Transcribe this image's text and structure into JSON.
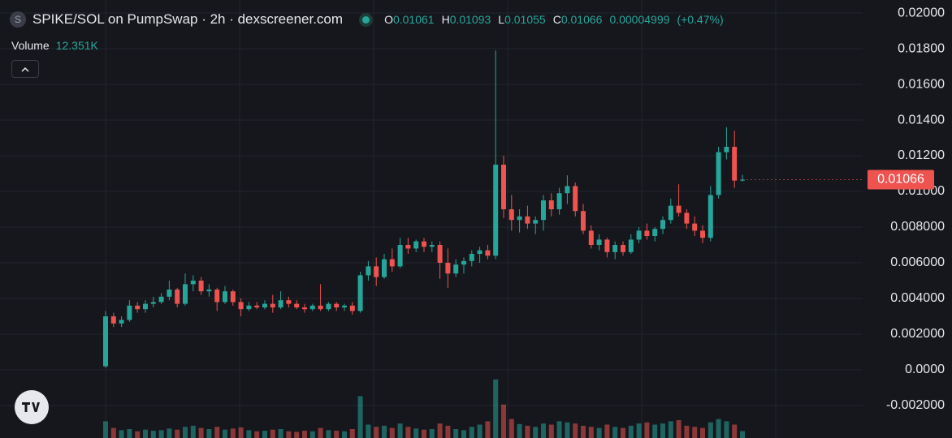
{
  "header": {
    "icon_letter": "S",
    "title": "SPIKE/SOL on PumpSwap · 2h · dexscreener.com",
    "ohlc_labels": [
      "O",
      "H",
      "L",
      "C"
    ],
    "ohlc_values": [
      0.01061,
      0.01093,
      0.01055,
      0.01066
    ],
    "change": 4.999e-05,
    "change_pct": {
      "value": 0.47,
      "label": "(+0.47%)"
    },
    "volume_label": "Volume",
    "volume_legend": {
      "value": 12351,
      "label": "12.351K"
    }
  },
  "chart_data": {
    "type": "candlestick",
    "up_color": "#26a69a",
    "down_color": "#ef5350",
    "grid": true,
    "ylim": [
      -0.00382,
      0.02073
    ],
    "yticks": [
      {
        "value": -0.002,
        "label": "-0.002000"
      },
      {
        "value": 0,
        "label": "0.0000"
      },
      {
        "value": 0.002,
        "label": "0.002000"
      },
      {
        "value": 0.004,
        "label": "0.004000"
      },
      {
        "value": 0.006,
        "label": "0.006000"
      },
      {
        "value": 0.008,
        "label": "0.008000"
      },
      {
        "value": 0.01,
        "label": "0.01000"
      },
      {
        "value": 0.012,
        "label": "0.01200"
      },
      {
        "value": 0.014,
        "label": "0.01400"
      },
      {
        "value": 0.016,
        "label": "0.01600"
      },
      {
        "value": 0.018,
        "label": "0.01800"
      },
      {
        "value": 0.02,
        "label": "0.02000"
      }
    ],
    "volume_ylim": [
      0,
      160000
    ],
    "open": [
      0.0002,
      0.003,
      0.0026,
      0.0028,
      0.0036,
      0.0034,
      0.0037,
      0.0038,
      0.0041,
      0.0045,
      0.0037,
      0.0048,
      0.005,
      0.0044,
      0.0045,
      0.0038,
      0.0044,
      0.0038,
      0.0034,
      0.0036,
      0.0035,
      0.0037,
      0.0035,
      0.0039,
      0.0037,
      0.0035,
      0.0034,
      0.0036,
      0.0034,
      0.0037,
      0.0035,
      0.0036,
      0.0033,
      0.0053,
      0.0058,
      0.0052,
      0.0062,
      0.0058,
      0.007,
      0.0068,
      0.0072,
      0.0069,
      0.007,
      0.006,
      0.0054,
      0.0059,
      0.0061,
      0.0065,
      0.0067,
      0.0064,
      0.0115,
      0.009,
      0.0084,
      0.0086,
      0.0082,
      0.0084,
      0.0095,
      0.009,
      0.0099,
      0.0103,
      0.0089,
      0.0078,
      0.007,
      0.0073,
      0.0066,
      0.007,
      0.0066,
      0.0073,
      0.0078,
      0.0075,
      0.0079,
      0.0084,
      0.0092,
      0.0088,
      0.0082,
      0.0078,
      0.0074,
      0.0098,
      0.0122,
      0.0125,
      0.01061
    ],
    "high": [
      0.0033,
      0.0032,
      0.003,
      0.0039,
      0.0038,
      0.0039,
      0.0041,
      0.0043,
      0.005,
      0.0046,
      0.0054,
      0.0053,
      0.0052,
      0.0048,
      0.0046,
      0.0047,
      0.0045,
      0.004,
      0.0038,
      0.0038,
      0.0039,
      0.0042,
      0.0044,
      0.0041,
      0.0039,
      0.0037,
      0.0037,
      0.0048,
      0.0038,
      0.0038,
      0.0037,
      0.0038,
      0.0055,
      0.0061,
      0.0063,
      0.0065,
      0.0068,
      0.0074,
      0.0074,
      0.0073,
      0.0074,
      0.0072,
      0.0072,
      0.0068,
      0.0062,
      0.0063,
      0.0067,
      0.0069,
      0.007,
      0.0179,
      0.012,
      0.0098,
      0.009,
      0.0092,
      0.0086,
      0.0098,
      0.0099,
      0.0102,
      0.0109,
      0.0105,
      0.0093,
      0.0081,
      0.0076,
      0.0074,
      0.0072,
      0.0072,
      0.0076,
      0.008,
      0.0082,
      0.008,
      0.0086,
      0.0096,
      0.0104,
      0.009,
      0.0086,
      0.0081,
      0.0103,
      0.0125,
      0.0136,
      0.0134,
      0.01093
    ],
    "low": [
      0.0001,
      0.0024,
      0.0024,
      0.0027,
      0.0032,
      0.0032,
      0.0035,
      0.0037,
      0.0039,
      0.0035,
      0.0036,
      0.0044,
      0.0042,
      0.0041,
      0.0033,
      0.0037,
      0.0036,
      0.003,
      0.0033,
      0.0034,
      0.0034,
      0.0032,
      0.0034,
      0.0035,
      0.0034,
      0.0032,
      0.0033,
      0.0033,
      0.0033,
      0.0033,
      0.0033,
      0.0031,
      0.0032,
      0.005,
      0.0047,
      0.0051,
      0.0055,
      0.0057,
      0.0065,
      0.0066,
      0.0066,
      0.0066,
      0.0051,
      0.0046,
      0.0052,
      0.0054,
      0.0058,
      0.006,
      0.0062,
      0.0062,
      0.0085,
      0.0078,
      0.0077,
      0.0079,
      0.0076,
      0.0078,
      0.0086,
      0.0087,
      0.0093,
      0.0086,
      0.0076,
      0.0068,
      0.0067,
      0.0063,
      0.0062,
      0.0064,
      0.0065,
      0.0071,
      0.0073,
      0.0072,
      0.0076,
      0.0082,
      0.0086,
      0.0079,
      0.0075,
      0.0071,
      0.0072,
      0.0096,
      0.0118,
      0.0102,
      0.01055
    ],
    "close": [
      0.003,
      0.0026,
      0.0028,
      0.0036,
      0.0034,
      0.0037,
      0.0038,
      0.0041,
      0.0045,
      0.0037,
      0.0048,
      0.005,
      0.0044,
      0.0045,
      0.0038,
      0.0044,
      0.0038,
      0.0034,
      0.0036,
      0.0035,
      0.0037,
      0.0035,
      0.0039,
      0.0037,
      0.0035,
      0.0034,
      0.0036,
      0.0034,
      0.0037,
      0.0035,
      0.0036,
      0.0033,
      0.0053,
      0.0058,
      0.0052,
      0.0062,
      0.0058,
      0.007,
      0.0068,
      0.0072,
      0.0069,
      0.007,
      0.006,
      0.0054,
      0.0059,
      0.0061,
      0.0065,
      0.0067,
      0.0064,
      0.0115,
      0.009,
      0.0084,
      0.0086,
      0.0082,
      0.0084,
      0.0095,
      0.009,
      0.0099,
      0.0103,
      0.0089,
      0.0078,
      0.007,
      0.0073,
      0.0066,
      0.007,
      0.0066,
      0.0073,
      0.0078,
      0.0075,
      0.0079,
      0.0084,
      0.0092,
      0.0088,
      0.0082,
      0.0078,
      0.0074,
      0.0098,
      0.0122,
      0.0125,
      0.01061,
      0.01066
    ],
    "volume": [
      30000,
      18000,
      14000,
      16000,
      12000,
      15000,
      13000,
      14000,
      17000,
      15000,
      20000,
      22000,
      18000,
      16000,
      20000,
      15000,
      17000,
      19000,
      14000,
      12000,
      13000,
      15000,
      16000,
      12000,
      11000,
      13000,
      12000,
      18000,
      14000,
      13000,
      12000,
      16000,
      75000,
      24000,
      20000,
      22000,
      18000,
      26000,
      20000,
      17000,
      15000,
      16000,
      26000,
      22000,
      16000,
      14000,
      20000,
      24000,
      30000,
      105000,
      60000,
      34000,
      25000,
      22000,
      20000,
      26000,
      24000,
      30000,
      28000,
      26000,
      22000,
      20000,
      18000,
      24000,
      20000,
      18000,
      22000,
      26000,
      28000,
      24000,
      26000,
      30000,
      32000,
      22000,
      20000,
      18000,
      28000,
      34000,
      30000,
      24000,
      12351
    ]
  }
}
